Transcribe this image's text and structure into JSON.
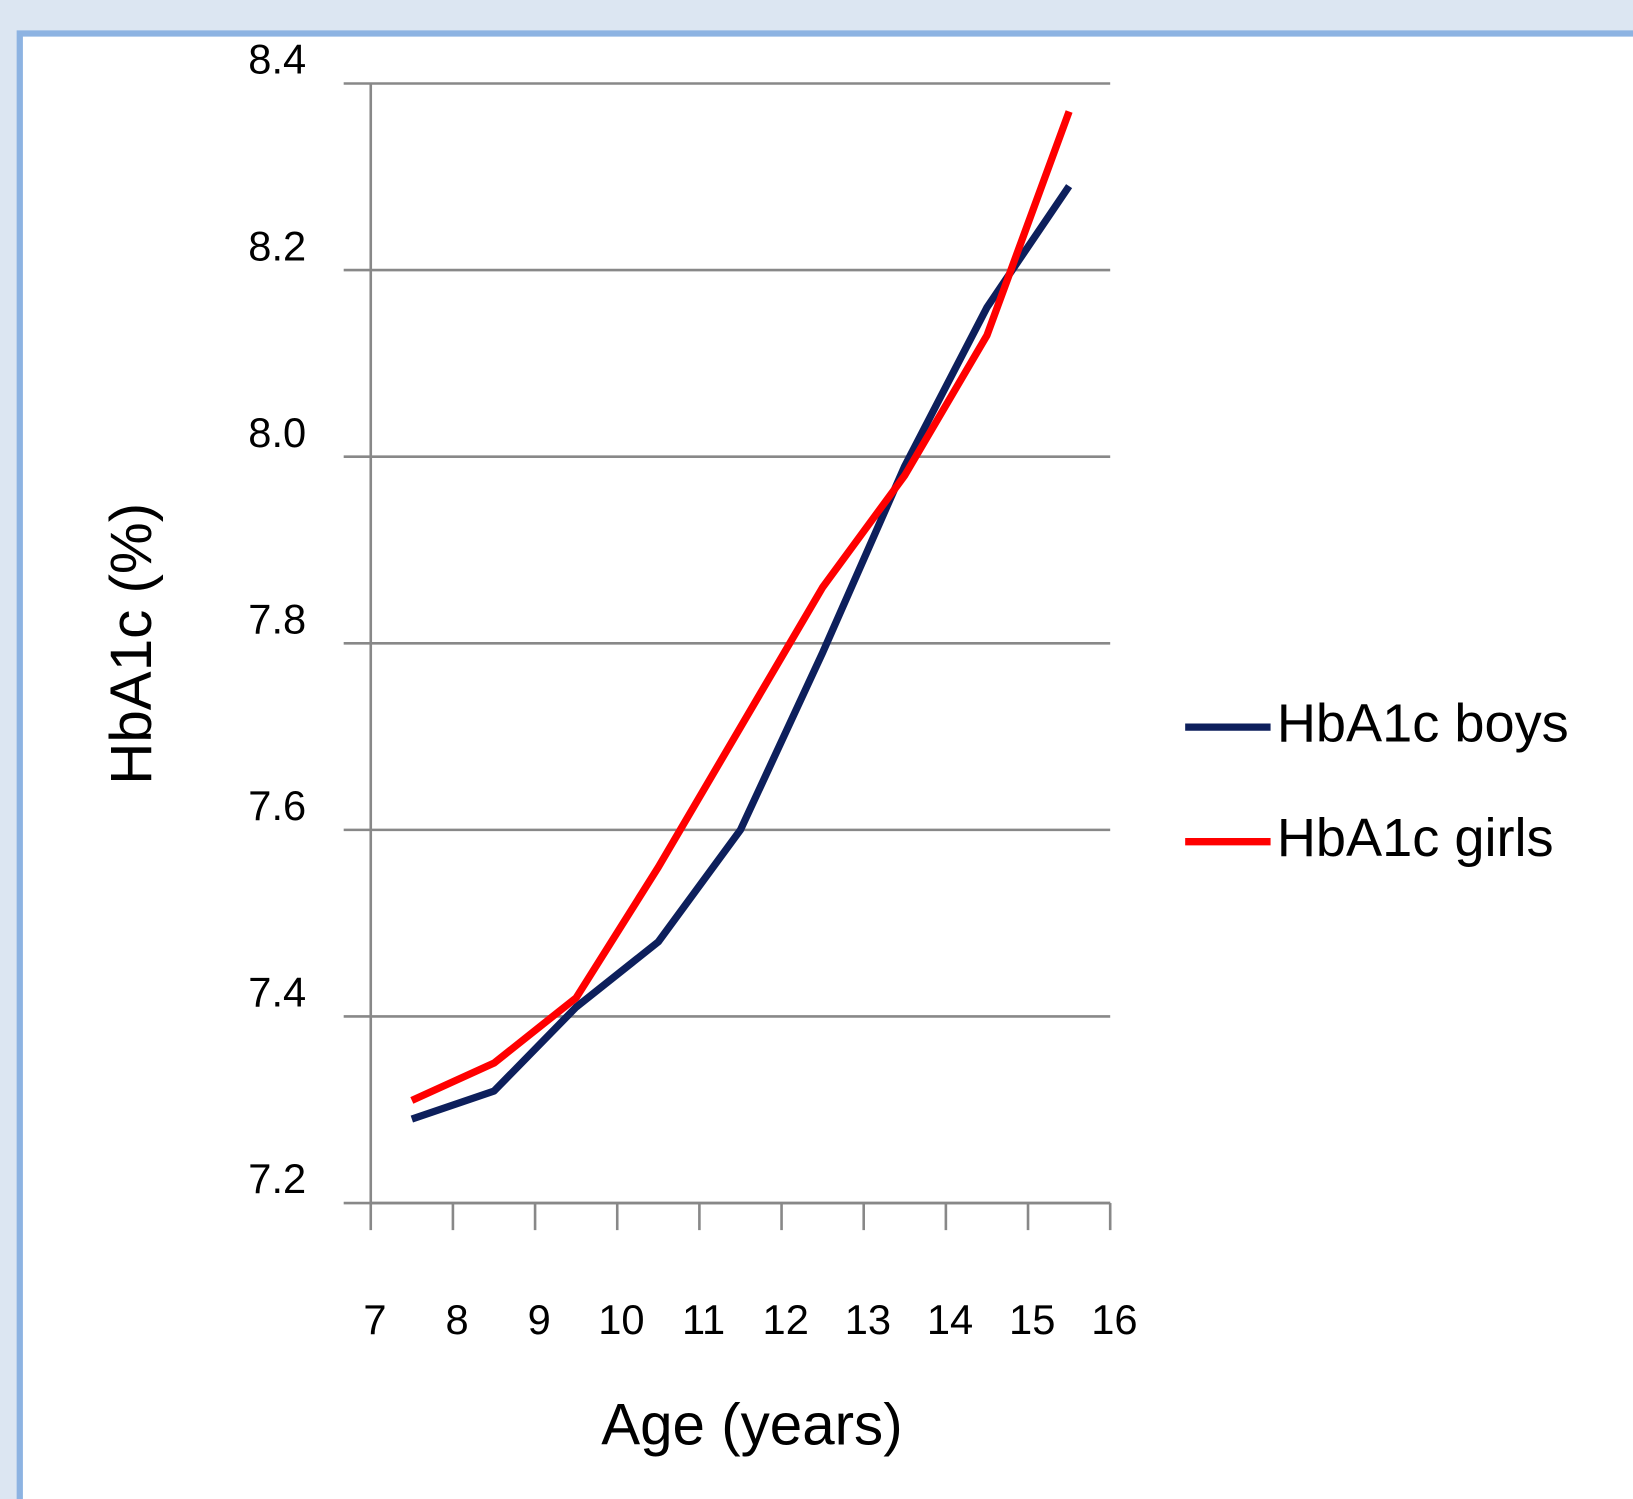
{
  "chart_data": {
    "type": "line",
    "x": [
      7.5,
      8.5,
      9.5,
      10.5,
      11.5,
      12.5,
      13.5,
      14.5,
      15.5
    ],
    "series": [
      {
        "name": "HbA1c boys",
        "color": "#0d1f5c",
        "values": [
          7.29,
          7.32,
          7.41,
          7.48,
          7.6,
          7.79,
          7.99,
          8.16,
          8.29
        ]
      },
      {
        "name": "HbA1c girls",
        "color": "#ff0000",
        "values": [
          7.31,
          7.35,
          7.42,
          7.56,
          7.71,
          7.86,
          7.98,
          8.13,
          8.37
        ]
      }
    ],
    "xlabel": "Age (years)",
    "ylabel": "HbA1c (%)",
    "xlim": [
      7,
      16
    ],
    "xticks": [
      7,
      8,
      9,
      10,
      11,
      12,
      13,
      14,
      15,
      16
    ],
    "ylim": [
      7.2,
      8.4
    ],
    "yticks": [
      {
        "value": 7.2,
        "label": "7.2"
      },
      {
        "value": 7.4,
        "label": "7.4"
      },
      {
        "value": 7.6,
        "label": "7.6"
      },
      {
        "value": 7.8,
        "label": "7.8"
      },
      {
        "value": 8.0,
        "label": "8.0"
      },
      {
        "value": 8.2,
        "label": "8.2"
      },
      {
        "value": 8.4,
        "label": "8.4"
      }
    ],
    "grid": true,
    "legend": "right"
  }
}
